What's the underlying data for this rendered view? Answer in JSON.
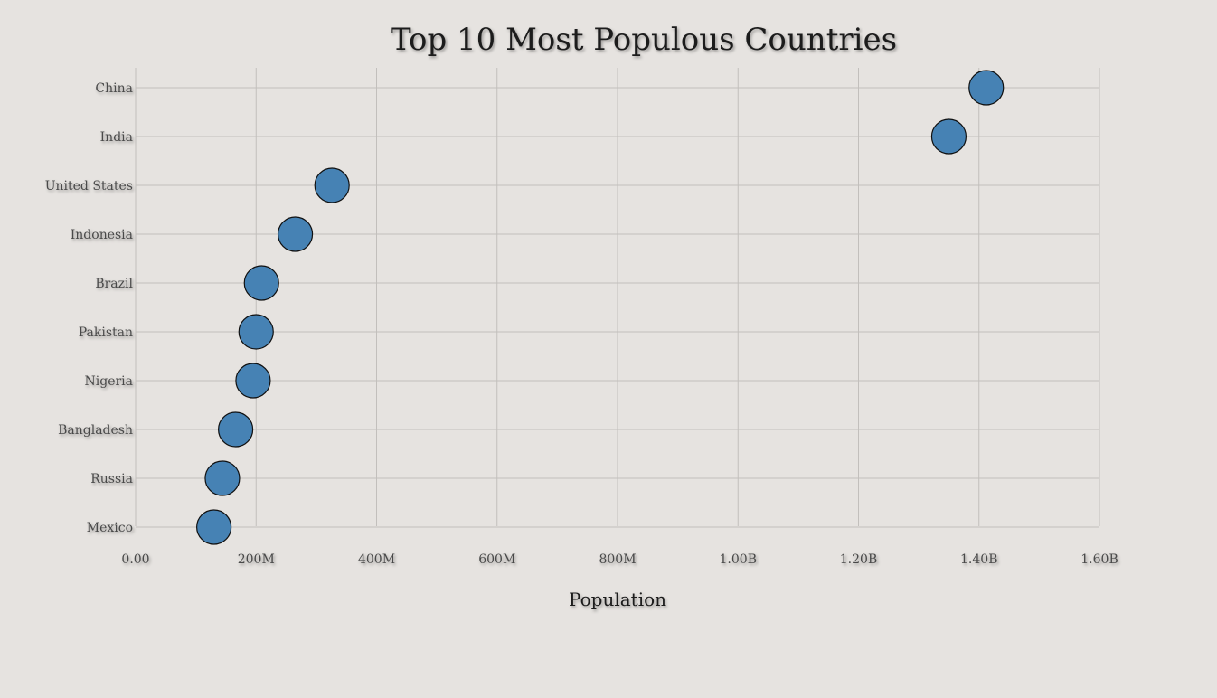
{
  "chart_data": {
    "type": "scatter",
    "title": "Top 10 Most Populous Countries",
    "xlabel": "Population",
    "ylabel": "",
    "xlim": [
      0,
      1600000000
    ],
    "x_ticks": [
      0,
      200000000,
      400000000,
      600000000,
      800000000,
      1000000000,
      1200000000,
      1400000000,
      1600000000
    ],
    "x_tick_labels": [
      "0.00",
      "200M",
      "400M",
      "600M",
      "800M",
      "1.00B",
      "1.20B",
      "1.40B",
      "1.60B"
    ],
    "categories": [
      "China",
      "India",
      "United States",
      "Indonesia",
      "Brazil",
      "Pakistan",
      "Nigeria",
      "Bangladesh",
      "Russia",
      "Mexico"
    ],
    "values": [
      1412000000,
      1350000000,
      326000000,
      265000000,
      209000000,
      200000000,
      195000000,
      166000000,
      144000000,
      130000000
    ],
    "grid": true,
    "marker_color": "#4682b4",
    "marker_edge_color": "#111111"
  }
}
